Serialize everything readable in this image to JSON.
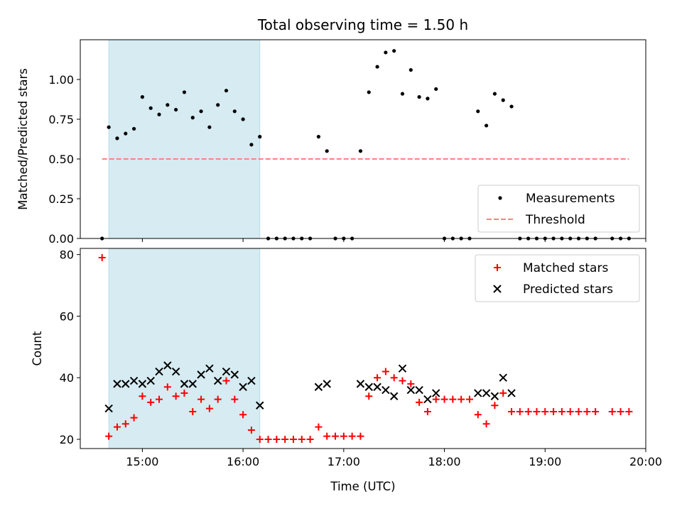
{
  "title": "Total observing time = 1.50 h",
  "chart_data": [
    {
      "type": "scatter",
      "ylabel": "Matched/Predicted stars",
      "xlim": [
        "14:23",
        "20:00"
      ],
      "ylim": [
        0,
        1.25
      ],
      "yticks": [
        "0.00",
        "0.25",
        "0.50",
        "0.75",
        "1.00"
      ],
      "shaded_interval": [
        "14:40",
        "16:10"
      ],
      "series": [
        {
          "name": "Measurements",
          "color": "#000000",
          "marker": "dot",
          "points": [
            [
              "14:36",
              0
            ],
            [
              "14:40",
              0.7
            ],
            [
              "14:45",
              0.63
            ],
            [
              "14:50",
              0.66
            ],
            [
              "14:55",
              0.69
            ],
            [
              "15:00",
              0.89
            ],
            [
              "15:05",
              0.82
            ],
            [
              "15:10",
              0.78
            ],
            [
              "15:15",
              0.84
            ],
            [
              "15:20",
              0.81
            ],
            [
              "15:25",
              0.92
            ],
            [
              "15:30",
              0.76
            ],
            [
              "15:35",
              0.8
            ],
            [
              "15:40",
              0.7
            ],
            [
              "15:45",
              0.84
            ],
            [
              "15:50",
              0.93
            ],
            [
              "15:55",
              0.8
            ],
            [
              "16:00",
              0.75
            ],
            [
              "16:05",
              0.59
            ],
            [
              "16:10",
              0.64
            ],
            [
              "16:15",
              0
            ],
            [
              "16:20",
              0
            ],
            [
              "16:25",
              0
            ],
            [
              "16:30",
              0
            ],
            [
              "16:35",
              0
            ],
            [
              "16:40",
              0
            ],
            [
              "16:45",
              0.64
            ],
            [
              "16:50",
              0.55
            ],
            [
              "16:55",
              0
            ],
            [
              "17:00",
              0
            ],
            [
              "17:05",
              0
            ],
            [
              "17:10",
              0.55
            ],
            [
              "17:15",
              0.92
            ],
            [
              "17:20",
              1.08
            ],
            [
              "17:25",
              1.17
            ],
            [
              "17:30",
              1.18
            ],
            [
              "17:35",
              0.91
            ],
            [
              "17:40",
              1.06
            ],
            [
              "17:45",
              0.89
            ],
            [
              "17:50",
              0.88
            ],
            [
              "17:55",
              0.94
            ],
            [
              "18:00",
              0
            ],
            [
              "18:05",
              0
            ],
            [
              "18:10",
              0
            ],
            [
              "18:15",
              0
            ],
            [
              "18:20",
              0.8
            ],
            [
              "18:25",
              0.71
            ],
            [
              "18:30",
              0.91
            ],
            [
              "18:35",
              0.87
            ],
            [
              "18:40",
              0.83
            ],
            [
              "18:45",
              0
            ],
            [
              "18:50",
              0
            ],
            [
              "18:55",
              0
            ],
            [
              "19:00",
              0
            ],
            [
              "19:05",
              0
            ],
            [
              "19:10",
              0
            ],
            [
              "19:15",
              0
            ],
            [
              "19:20",
              0
            ],
            [
              "19:25",
              0
            ],
            [
              "19:30",
              0
            ],
            [
              "19:40",
              0
            ],
            [
              "19:45",
              0
            ],
            [
              "19:50",
              0
            ]
          ]
        },
        {
          "name": "Threshold",
          "color": "#ff8080",
          "style": "dashed",
          "points": [
            [
              "14:36",
              0.5
            ],
            [
              "19:50",
              0.5
            ]
          ]
        }
      ],
      "legend": "lower right"
    },
    {
      "type": "scatter",
      "xlabel": "Time (UTC)",
      "ylabel": "Count",
      "xlim": [
        "14:23",
        "20:00"
      ],
      "ylim": [
        17,
        82
      ],
      "xticks": [
        "15:00",
        "16:00",
        "17:00",
        "18:00",
        "19:00",
        "20:00"
      ],
      "yticks": [
        "20",
        "40",
        "60",
        "80"
      ],
      "shaded_interval": [
        "14:40",
        "16:10"
      ],
      "series": [
        {
          "name": "Matched stars",
          "color": "#ff0000",
          "marker": "plus",
          "points": [
            [
              "14:36",
              79
            ],
            [
              "14:40",
              21
            ],
            [
              "14:45",
              24
            ],
            [
              "14:50",
              25
            ],
            [
              "14:55",
              27
            ],
            [
              "15:00",
              34
            ],
            [
              "15:05",
              32
            ],
            [
              "15:10",
              33
            ],
            [
              "15:15",
              37
            ],
            [
              "15:20",
              34
            ],
            [
              "15:25",
              35
            ],
            [
              "15:30",
              29
            ],
            [
              "15:35",
              33
            ],
            [
              "15:40",
              30
            ],
            [
              "15:45",
              33
            ],
            [
              "15:50",
              39
            ],
            [
              "15:55",
              33
            ],
            [
              "16:00",
              28
            ],
            [
              "16:05",
              23
            ],
            [
              "16:10",
              20
            ],
            [
              "16:15",
              20
            ],
            [
              "16:20",
              20
            ],
            [
              "16:25",
              20
            ],
            [
              "16:30",
              20
            ],
            [
              "16:35",
              20
            ],
            [
              "16:40",
              20
            ],
            [
              "16:45",
              24
            ],
            [
              "16:50",
              21
            ],
            [
              "16:55",
              21
            ],
            [
              "17:00",
              21
            ],
            [
              "17:05",
              21
            ],
            [
              "17:10",
              21
            ],
            [
              "17:15",
              34
            ],
            [
              "17:20",
              40
            ],
            [
              "17:25",
              42
            ],
            [
              "17:30",
              40
            ],
            [
              "17:35",
              39
            ],
            [
              "17:40",
              38
            ],
            [
              "17:45",
              32
            ],
            [
              "17:50",
              29
            ],
            [
              "17:55",
              33
            ],
            [
              "18:00",
              33
            ],
            [
              "18:05",
              33
            ],
            [
              "18:10",
              33
            ],
            [
              "18:15",
              33
            ],
            [
              "18:20",
              28
            ],
            [
              "18:25",
              25
            ],
            [
              "18:30",
              31
            ],
            [
              "18:35",
              35
            ],
            [
              "18:40",
              29
            ],
            [
              "18:45",
              29
            ],
            [
              "18:50",
              29
            ],
            [
              "18:55",
              29
            ],
            [
              "19:00",
              29
            ],
            [
              "19:05",
              29
            ],
            [
              "19:10",
              29
            ],
            [
              "19:15",
              29
            ],
            [
              "19:20",
              29
            ],
            [
              "19:25",
              29
            ],
            [
              "19:30",
              29
            ],
            [
              "19:40",
              29
            ],
            [
              "19:45",
              29
            ],
            [
              "19:50",
              29
            ]
          ]
        },
        {
          "name": "Predicted stars",
          "color": "#000000",
          "marker": "x",
          "points": [
            [
              "14:40",
              30
            ],
            [
              "14:45",
              38
            ],
            [
              "14:50",
              38
            ],
            [
              "14:55",
              39
            ],
            [
              "15:00",
              38
            ],
            [
              "15:05",
              39
            ],
            [
              "15:10",
              42
            ],
            [
              "15:15",
              44
            ],
            [
              "15:20",
              42
            ],
            [
              "15:25",
              38
            ],
            [
              "15:30",
              38
            ],
            [
              "15:35",
              41
            ],
            [
              "15:40",
              43
            ],
            [
              "15:45",
              39
            ],
            [
              "15:50",
              42
            ],
            [
              "15:55",
              41
            ],
            [
              "16:00",
              37
            ],
            [
              "16:05",
              39
            ],
            [
              "16:10",
              31
            ],
            [
              "16:45",
              37
            ],
            [
              "16:50",
              38
            ],
            [
              "17:10",
              38
            ],
            [
              "17:15",
              37
            ],
            [
              "17:20",
              37
            ],
            [
              "17:25",
              36
            ],
            [
              "17:30",
              34
            ],
            [
              "17:35",
              43
            ],
            [
              "17:40",
              36
            ],
            [
              "17:45",
              36
            ],
            [
              "17:50",
              33
            ],
            [
              "17:55",
              35
            ],
            [
              "18:20",
              35
            ],
            [
              "18:25",
              35
            ],
            [
              "18:30",
              34
            ],
            [
              "18:35",
              40
            ],
            [
              "18:40",
              35
            ]
          ]
        }
      ],
      "legend": "upper right"
    }
  ]
}
